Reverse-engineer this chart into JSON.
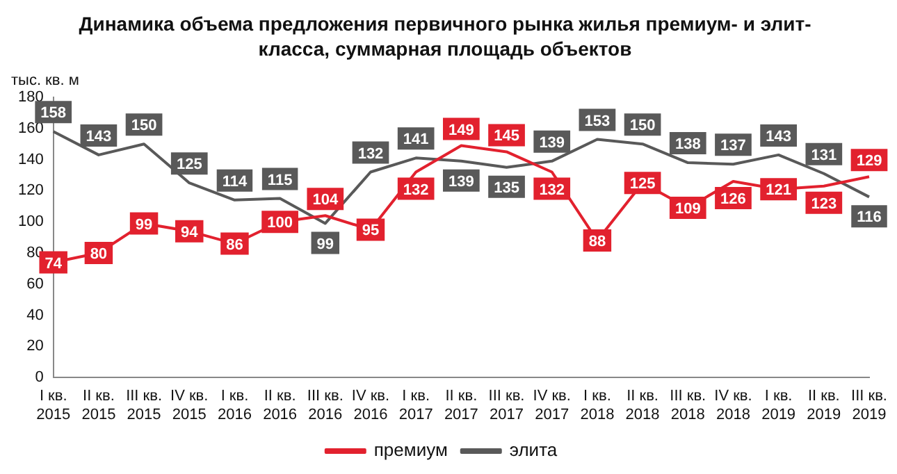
{
  "chart_data": {
    "type": "line",
    "title": "Динамика объема предложения первичного рынка жилья премиум- и элит-класса, суммарная площадь объектов",
    "ylabel": "тыс. кв. м",
    "categories": [
      "I кв. 2015",
      "II кв. 2015",
      "III кв. 2015",
      "IV кв. 2015",
      "I кв. 2016",
      "II кв. 2016",
      "III кв. 2016",
      "IV кв. 2016",
      "I кв. 2017",
      "II кв. 2017",
      "III кв. 2017",
      "IV кв. 2017",
      "I кв. 2018",
      "II кв. 2018",
      "III кв. 2018",
      "IV кв. 2018",
      "I кв. 2019",
      "II кв. 2019",
      "III кв. 2019"
    ],
    "series": [
      {
        "name": "премиум",
        "color": "#e2212e",
        "values": [
          74,
          80,
          99,
          94,
          86,
          100,
          104,
          95,
          132,
          149,
          145,
          132,
          88,
          125,
          109,
          126,
          121,
          123,
          129
        ]
      },
      {
        "name": "элита",
        "color": "#595959",
        "values": [
          158,
          143,
          150,
          125,
          114,
          115,
          99,
          132,
          141,
          139,
          135,
          139,
          153,
          150,
          138,
          137,
          143,
          131,
          116
        ]
      }
    ],
    "ylim": [
      0,
      180
    ],
    "yticks": [
      0,
      20,
      40,
      60,
      80,
      100,
      120,
      140,
      160,
      180
    ],
    "grid": false,
    "legend": "bottom",
    "line_style": "solid",
    "data_labels": true
  }
}
